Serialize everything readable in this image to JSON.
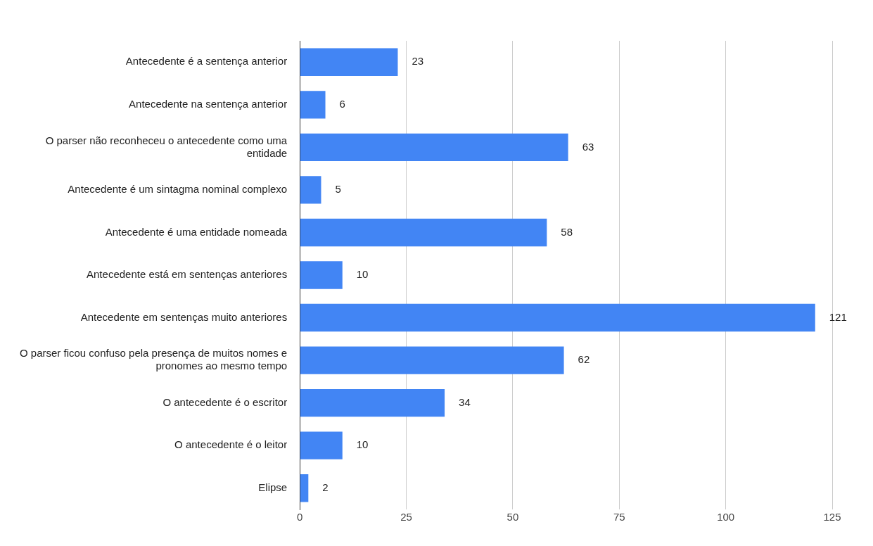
{
  "chart_data": {
    "type": "bar",
    "orientation": "horizontal",
    "categories": [
      "Antecedente é a sentença anterior",
      "Antecedente na sentença anterior",
      "O parser não reconheceu o antecedente como uma entidade",
      "Antecedente é um sintagma nominal complexo",
      "Antecedente é uma entidade nomeada",
      "Antecedente está em sentenças anteriores",
      "Antecedente em sentenças muito anteriores",
      "O parser ficou confuso pela presença de muitos nomes e pronomes ao mesmo tempo",
      "O antecedente é o escritor",
      "O antecedente é o leitor",
      "Elipse"
    ],
    "values": [
      23,
      6,
      63,
      5,
      58,
      10,
      121,
      62,
      34,
      10,
      2
    ],
    "color": "#4285f4",
    "xlim": [
      0,
      125
    ],
    "xticks": [
      0,
      25,
      50,
      75,
      100,
      125
    ],
    "grid": "x",
    "legend": false,
    "data_labels": true
  }
}
